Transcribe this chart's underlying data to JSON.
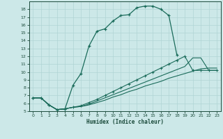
{
  "xlabel": "Humidex (Indice chaleur)",
  "bg_color": "#cce8e8",
  "grid_color": "#b0d4d4",
  "line_color": "#1a6b5a",
  "xlim": [
    -0.5,
    23.5
  ],
  "ylim": [
    5,
    19
  ],
  "xticks": [
    0,
    1,
    2,
    3,
    4,
    5,
    6,
    7,
    8,
    9,
    10,
    11,
    12,
    13,
    14,
    15,
    16,
    17,
    18,
    19,
    20,
    21,
    22,
    23
  ],
  "yticks": [
    5,
    6,
    7,
    8,
    9,
    10,
    11,
    12,
    13,
    14,
    15,
    16,
    17,
    18
  ],
  "line1_x": [
    0,
    1,
    2,
    3,
    4,
    5,
    6,
    7,
    8,
    9,
    10,
    11,
    12,
    13,
    14,
    15,
    16,
    17,
    18,
    19,
    20,
    21,
    22,
    23
  ],
  "line1_y": [
    6.7,
    6.7,
    5.8,
    5.2,
    5.3,
    8.3,
    9.8,
    13.3,
    15.2,
    15.5,
    16.5,
    17.2,
    17.3,
    18.2,
    18.4,
    18.4,
    18.0,
    17.2,
    12.2,
    null,
    null,
    null,
    null,
    null
  ],
  "line2_x": [
    0,
    1,
    2,
    3,
    4,
    5,
    6,
    7,
    8,
    9,
    10,
    11,
    12,
    13,
    14,
    15,
    16,
    17,
    18,
    19,
    20,
    21,
    22,
    23
  ],
  "line2_y": [
    6.7,
    6.7,
    5.8,
    5.2,
    5.3,
    5.5,
    5.6,
    5.8,
    6.1,
    6.4,
    6.8,
    7.1,
    7.5,
    7.8,
    8.2,
    8.5,
    8.8,
    9.2,
    9.5,
    9.8,
    10.1,
    10.4,
    10.5,
    10.5
  ],
  "line3_x": [
    0,
    1,
    2,
    3,
    4,
    5,
    6,
    7,
    8,
    9,
    10,
    11,
    12,
    13,
    14,
    15,
    16,
    17,
    18,
    19,
    20,
    21,
    22,
    23
  ],
  "line3_y": [
    6.7,
    6.7,
    5.8,
    5.2,
    5.3,
    5.5,
    5.7,
    6.1,
    6.5,
    7.0,
    7.5,
    8.0,
    8.5,
    9.0,
    9.5,
    10.0,
    10.5,
    11.0,
    11.5,
    12.0,
    10.2,
    10.2,
    10.2,
    10.2
  ],
  "line4_x": [
    0,
    1,
    2,
    3,
    4,
    5,
    6,
    7,
    8,
    9,
    10,
    11,
    12,
    13,
    14,
    15,
    16,
    17,
    18,
    19,
    20,
    21,
    22,
    23
  ],
  "line4_y": [
    6.7,
    6.7,
    5.8,
    5.2,
    5.3,
    5.5,
    5.6,
    5.9,
    6.3,
    6.7,
    7.1,
    7.5,
    7.9,
    8.3,
    8.7,
    9.1,
    9.5,
    9.9,
    10.3,
    10.7,
    11.8,
    11.8,
    10.2,
    10.2
  ]
}
